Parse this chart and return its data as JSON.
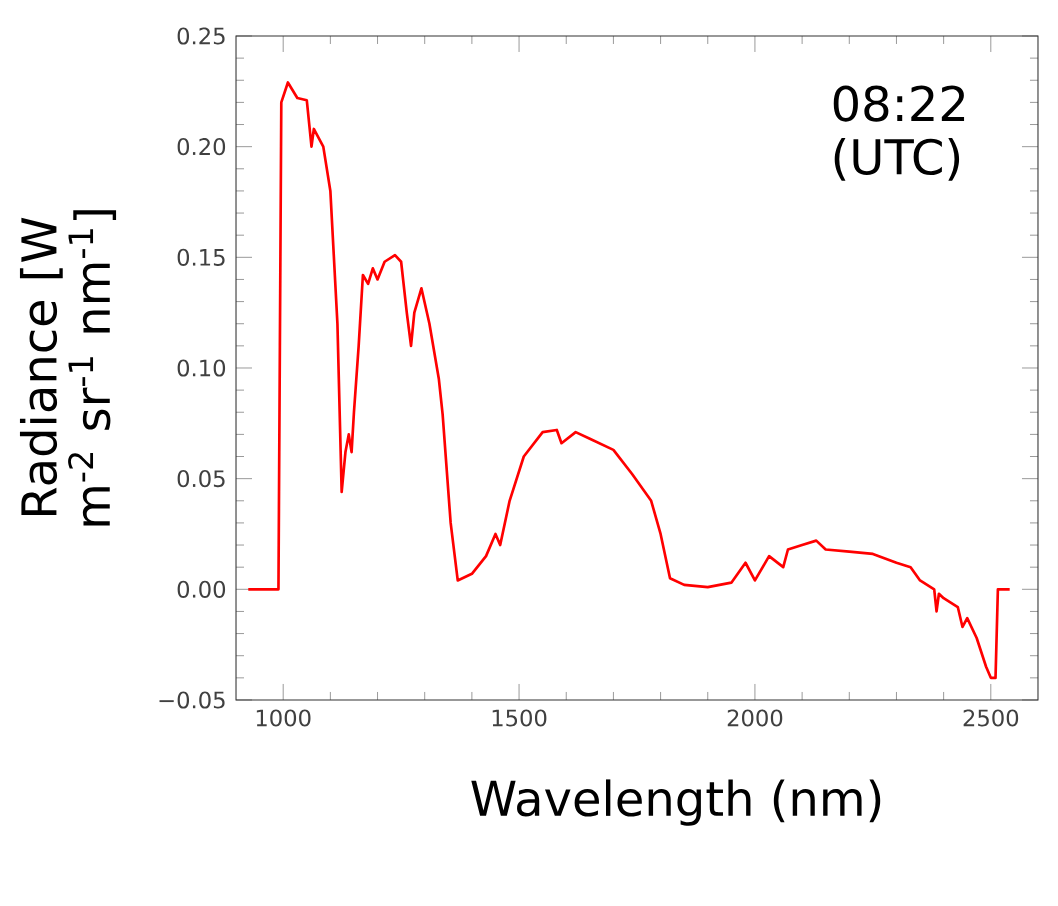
{
  "chart_data": {
    "type": "line",
    "xlabel": "Wavelength (nm)",
    "ylabel": "Radiance [W m$^{-2}$ sr$^{-1}$ nm$^{-1}$]",
    "annotations": [
      "08:22 (UTC)"
    ],
    "xlim": [
      900,
      2600
    ],
    "ylim": [
      -0.05,
      0.25
    ],
    "xticks": [
      1000,
      1500,
      2000,
      2500
    ],
    "yticks": [
      {
        "value": -0.05,
        "label": "−0.05"
      },
      {
        "value": 0.0,
        "label": "0.00"
      },
      {
        "value": 0.05,
        "label": "0.05"
      },
      {
        "value": 0.1,
        "label": "0.10"
      },
      {
        "value": 0.15,
        "label": "0.15"
      },
      {
        "value": 0.2,
        "label": "0.20"
      },
      {
        "value": 0.25,
        "label": "0.25"
      }
    ],
    "grid": false,
    "marker": "none",
    "line_style": "solid",
    "x": [
      926,
      990,
      993,
      996,
      1010,
      1030,
      1050,
      1060,
      1065,
      1070,
      1085,
      1100,
      1115,
      1124,
      1132,
      1139,
      1145,
      1150,
      1160,
      1169,
      1180,
      1190,
      1200,
      1215,
      1237,
      1250,
      1262,
      1271,
      1278,
      1293,
      1310,
      1330,
      1338,
      1355,
      1370,
      1380,
      1400,
      1430,
      1450,
      1460,
      1480,
      1510,
      1550,
      1580,
      1590,
      1620,
      1650,
      1700,
      1740,
      1780,
      1800,
      1820,
      1850,
      1900,
      1950,
      1980,
      2000,
      2030,
      2060,
      2070,
      2100,
      2130,
      2150,
      2200,
      2250,
      2300,
      2330,
      2350,
      2380,
      2385,
      2390,
      2400,
      2430,
      2440,
      2450,
      2470,
      2490,
      2500,
      2510,
      2515,
      2540
    ],
    "series": [
      {
        "color": "#ff0000",
        "values": [
          0.0,
          0.0,
          0.11,
          0.22,
          0.229,
          0.222,
          0.221,
          0.2,
          0.208,
          0.206,
          0.2,
          0.18,
          0.12,
          0.044,
          0.062,
          0.07,
          0.062,
          0.08,
          0.11,
          0.142,
          0.138,
          0.145,
          0.14,
          0.148,
          0.151,
          0.148,
          0.125,
          0.11,
          0.125,
          0.136,
          0.12,
          0.095,
          0.079,
          0.03,
          0.004,
          0.005,
          0.007,
          0.015,
          0.025,
          0.02,
          0.04,
          0.06,
          0.071,
          0.072,
          0.066,
          0.071,
          0.068,
          0.063,
          0.052,
          0.04,
          0.025,
          0.005,
          0.002,
          0.001,
          0.003,
          0.012,
          0.004,
          0.015,
          0.01,
          0.018,
          0.02,
          0.022,
          0.018,
          0.017,
          0.016,
          0.012,
          0.01,
          0.004,
          0.0,
          -0.01,
          -0.002,
          -0.004,
          -0.008,
          -0.017,
          -0.013,
          -0.022,
          -0.035,
          -0.04,
          -0.04,
          0.0,
          0.0
        ]
      }
    ]
  }
}
